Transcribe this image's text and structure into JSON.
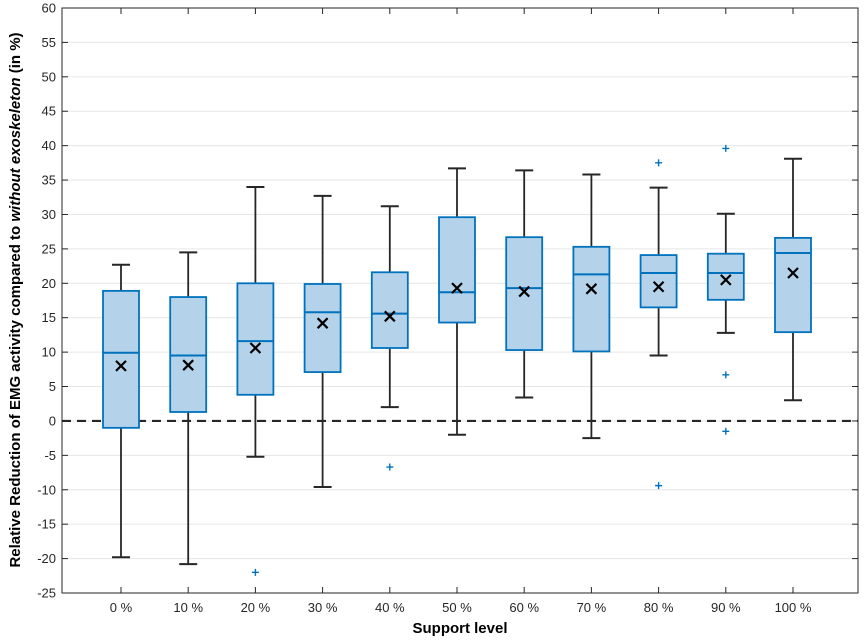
{
  "chart_data": {
    "type": "boxplot",
    "title": "",
    "xlabel": "Support level",
    "ylabel_parts": [
      "Relative Reduction of EMG activity compared to ",
      "without exoskeleton",
      " (in %)"
    ],
    "ylim": [
      -25,
      60
    ],
    "yticks": [
      -25,
      -20,
      -15,
      -10,
      -5,
      0,
      5,
      10,
      15,
      20,
      25,
      30,
      35,
      40,
      45,
      50,
      55,
      60
    ],
    "grid": true,
    "reference_line": {
      "y": 0,
      "style": "dashed"
    },
    "categories": [
      "0 %",
      "10 %",
      "20 %",
      "30 %",
      "40 %",
      "50 %",
      "60 %",
      "70 %",
      "80 %",
      "90 %",
      "100 %"
    ],
    "boxes": [
      {
        "category": "0 %",
        "whisker_low": -19.8,
        "q1": -1.0,
        "median": 9.9,
        "q3": 18.9,
        "whisker_high": 22.7,
        "mean": 8.0,
        "outliers": []
      },
      {
        "category": "10 %",
        "whisker_low": -20.8,
        "q1": 1.3,
        "median": 9.5,
        "q3": 18.0,
        "whisker_high": 24.5,
        "mean": 8.1,
        "outliers": []
      },
      {
        "category": "20 %",
        "whisker_low": -5.2,
        "q1": 3.8,
        "median": 11.6,
        "q3": 20.0,
        "whisker_high": 34.0,
        "mean": 10.6,
        "outliers": [
          -22.0
        ]
      },
      {
        "category": "30 %",
        "whisker_low": -9.6,
        "q1": 7.1,
        "median": 15.8,
        "q3": 19.9,
        "whisker_high": 32.7,
        "mean": 14.2,
        "outliers": []
      },
      {
        "category": "40 %",
        "whisker_low": 2.0,
        "q1": 10.6,
        "median": 15.6,
        "q3": 21.6,
        "whisker_high": 31.2,
        "mean": 15.2,
        "outliers": [
          -6.7
        ]
      },
      {
        "category": "50 %",
        "whisker_low": -2.0,
        "q1": 14.3,
        "median": 18.7,
        "q3": 29.6,
        "whisker_high": 36.7,
        "mean": 19.3,
        "outliers": []
      },
      {
        "category": "60 %",
        "whisker_low": 3.4,
        "q1": 10.3,
        "median": 19.3,
        "q3": 26.7,
        "whisker_high": 36.4,
        "mean": 18.8,
        "outliers": []
      },
      {
        "category": "70 %",
        "whisker_low": -2.5,
        "q1": 10.1,
        "median": 21.3,
        "q3": 25.3,
        "whisker_high": 35.8,
        "mean": 19.2,
        "outliers": []
      },
      {
        "category": "80 %",
        "whisker_low": 9.5,
        "q1": 16.5,
        "median": 21.5,
        "q3": 24.1,
        "whisker_high": 33.9,
        "mean": 19.5,
        "outliers": [
          37.5,
          -9.4
        ]
      },
      {
        "category": "90 %",
        "whisker_low": 12.8,
        "q1": 17.6,
        "median": 21.5,
        "q3": 24.3,
        "whisker_high": 30.1,
        "mean": 20.5,
        "outliers": [
          39.6,
          6.7,
          -1.5
        ]
      },
      {
        "category": "100 %",
        "whisker_low": 3.0,
        "q1": 12.9,
        "median": 24.4,
        "q3": 26.6,
        "whisker_high": 38.1,
        "mean": 21.5,
        "outliers": []
      }
    ],
    "colors": {
      "box_fill": "#b4d3ea",
      "box_edge": "#0072bd",
      "whisker": "#262626",
      "mean_marker": "#000000",
      "outlier": "#0072bd",
      "grid": "#e6e6e6",
      "axis": "#262626"
    }
  }
}
